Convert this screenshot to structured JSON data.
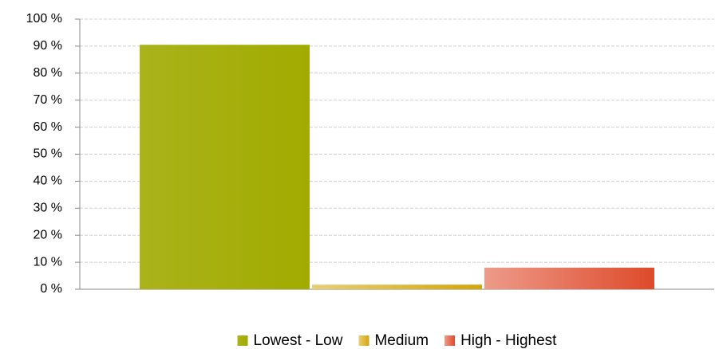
{
  "chart_data": {
    "type": "bar",
    "categories": [
      null
    ],
    "series": [
      {
        "name": "Lowest - Low",
        "color": "#a1ab00",
        "values": [
          90.5
        ]
      },
      {
        "name": "Medium",
        "color": "#d4a60a",
        "values": [
          1.7
        ]
      },
      {
        "name": "High - Highest",
        "color": "#de4a2a",
        "values": [
          8
        ]
      }
    ],
    "ylim": [
      0,
      100
    ],
    "yticks": [
      {
        "value": 0,
        "label": "0 %"
      },
      {
        "value": 10,
        "label": "10 %"
      },
      {
        "value": 20,
        "label": "20 %"
      },
      {
        "value": 30,
        "label": "30 %"
      },
      {
        "value": 40,
        "label": "40 %"
      },
      {
        "value": 50,
        "label": "50 %"
      },
      {
        "value": 60,
        "label": "60 %"
      },
      {
        "value": 70,
        "label": "70 %"
      },
      {
        "value": 80,
        "label": "80 %"
      },
      {
        "value": 90,
        "label": "90 %"
      },
      {
        "value": 100,
        "label": "100 %"
      }
    ],
    "grid": true,
    "legend": "bottom"
  }
}
